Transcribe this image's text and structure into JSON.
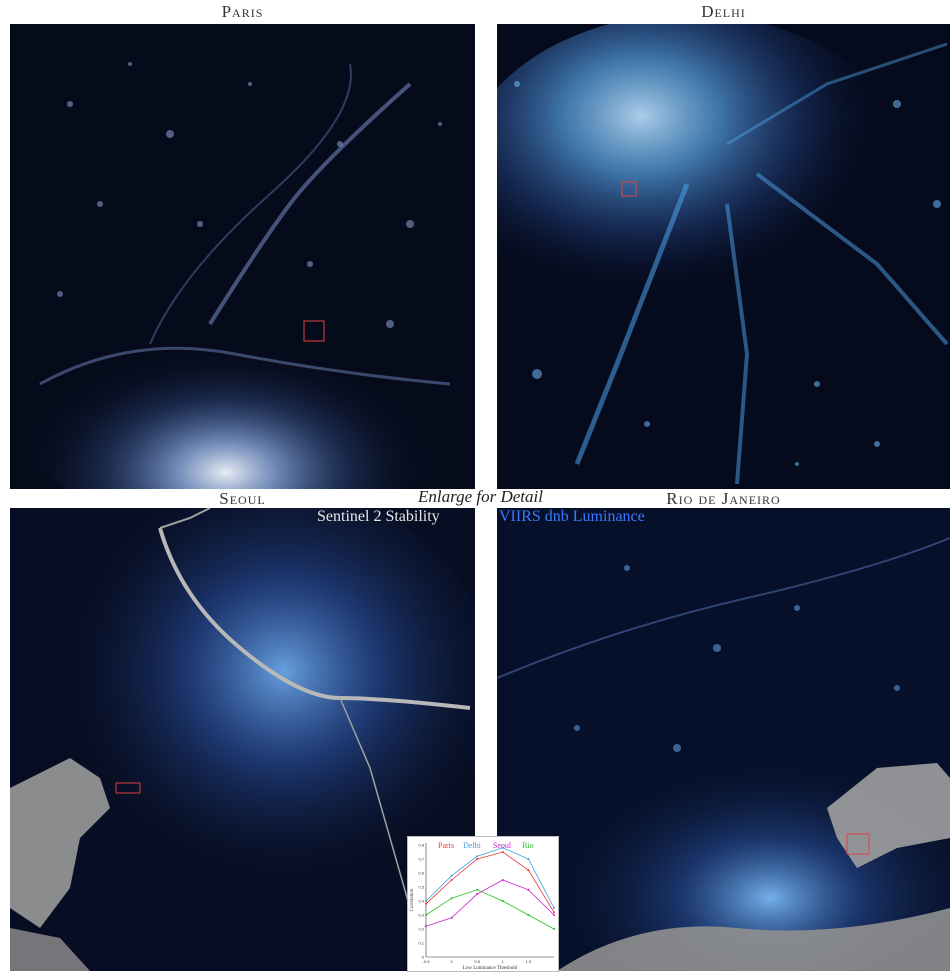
{
  "panels": {
    "paris": {
      "label": "Paris"
    },
    "delhi": {
      "label": "Delhi"
    },
    "seoul": {
      "label": "Seoul"
    },
    "rio": {
      "label": "Rio de Janeiro"
    }
  },
  "caption": {
    "enlarge": "Enlarge for Detail",
    "left_legend": "Sentinel 2 Stability",
    "right_legend": "VIIRS dnb Luminance"
  },
  "colors": {
    "night_bg": "#050a1a",
    "city_light": "#6fb6ff",
    "water": "#9a9a9a",
    "highlight_box": "#e04040",
    "legend_blue": "#3a78ff",
    "legend_white": "#e8e8e8"
  },
  "chart_data": {
    "type": "line",
    "legend": [
      "Paris",
      "Delhi",
      "Seoul",
      "Rio"
    ],
    "series_colors": [
      "#e33",
      "#3a9fe0",
      "#d020d0",
      "#2bbf2b"
    ],
    "xlabel": "Low Luminance Threshold",
    "ylabel": "Correlation",
    "xticks": [
      "-0.5",
      "0",
      "0.5",
      "1",
      "1.5"
    ],
    "yticks": [
      "0.8",
      "0.7",
      "0.6",
      "0.5",
      "0.4",
      "0.3",
      "0.2",
      "0.1",
      "0"
    ],
    "x": [
      -0.5,
      0,
      0.5,
      1,
      1.5,
      2
    ],
    "series": [
      {
        "name": "Paris",
        "values": [
          0.38,
          0.55,
          0.7,
          0.75,
          0.62,
          0.32
        ]
      },
      {
        "name": "Delhi",
        "values": [
          0.4,
          0.58,
          0.72,
          0.78,
          0.7,
          0.35
        ]
      },
      {
        "name": "Seoul",
        "values": [
          0.22,
          0.28,
          0.45,
          0.55,
          0.48,
          0.3
        ]
      },
      {
        "name": "Rio",
        "values": [
          0.3,
          0.42,
          0.48,
          0.4,
          0.3,
          0.2
        ]
      }
    ]
  }
}
